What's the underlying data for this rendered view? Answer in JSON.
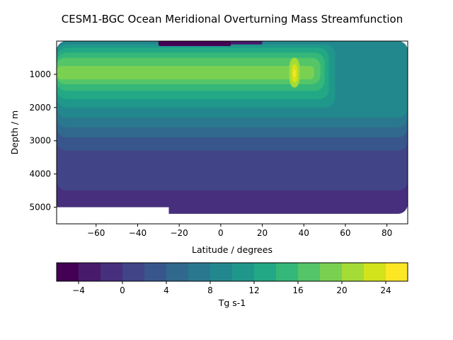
{
  "chart_data": {
    "type": "heatmap",
    "title": "CESM1-BGC Ocean Meridional Overturning Mass Streamfunction",
    "xlabel": "Latitude / degrees",
    "ylabel": "Depth / m",
    "xlim": [
      -79,
      90
    ],
    "ylim": [
      5500,
      0
    ],
    "xticks": [
      -60,
      -40,
      -20,
      0,
      20,
      40,
      60,
      80
    ],
    "yticks": [
      1000,
      2000,
      3000,
      4000,
      5000
    ],
    "colorbar": {
      "label": "Tg s-1",
      "levels": [
        -6,
        -4,
        -2,
        0,
        2,
        4,
        6,
        8,
        10,
        12,
        14,
        16,
        18,
        20,
        22,
        24,
        26
      ],
      "ticks": [
        -4,
        0,
        4,
        8,
        12,
        16,
        20,
        24
      ],
      "colors": [
        "#440154",
        "#481a6c",
        "#472f7d",
        "#414487",
        "#39568c",
        "#31688e",
        "#2a788e",
        "#23888e",
        "#1f988b",
        "#22a884",
        "#35b779",
        "#54c568",
        "#7ad151",
        "#a5db36",
        "#d2e21b",
        "#fde725"
      ]
    },
    "field": [
      {
        "lat_start": -79,
        "lat_end": 90,
        "depth_top": 0,
        "depth_bottom": 5200,
        "value": -1
      },
      {
        "lat_start": -79,
        "lat_end": 90,
        "depth_top": 0,
        "depth_bottom": 4500,
        "value": 1
      },
      {
        "lat_start": -79,
        "lat_end": 90,
        "depth_top": 0,
        "depth_bottom": 3300,
        "value": 3
      },
      {
        "lat_start": -79,
        "lat_end": 90,
        "depth_top": 0,
        "depth_bottom": 2900,
        "value": 5
      },
      {
        "lat_start": -79,
        "lat_end": 90,
        "depth_top": 0,
        "depth_bottom": 2600,
        "value": 7
      },
      {
        "lat_start": -79,
        "lat_end": 90,
        "depth_top": 0,
        "depth_bottom": 2300,
        "value": 9
      },
      {
        "lat_start": -79,
        "lat_end": 55,
        "depth_top": 100,
        "depth_bottom": 2000,
        "value": 11
      },
      {
        "lat_start": -79,
        "lat_end": 52,
        "depth_top": 200,
        "depth_bottom": 1750,
        "value": 13
      },
      {
        "lat_start": -79,
        "lat_end": 50,
        "depth_top": 350,
        "depth_bottom": 1500,
        "value": 15
      },
      {
        "lat_start": -79,
        "lat_end": 48,
        "depth_top": 500,
        "depth_bottom": 1300,
        "value": 17
      },
      {
        "lat_start": -79,
        "lat_end": 45,
        "depth_top": 750,
        "depth_bottom": 1150,
        "value": 19
      },
      {
        "lat_start": 33,
        "lat_end": 38,
        "depth_top": 500,
        "depth_bottom": 1400,
        "value": 21
      },
      {
        "lat_start": 34,
        "lat_end": 37,
        "depth_top": 700,
        "depth_bottom": 1250,
        "value": 23
      },
      {
        "lat_start": 35,
        "lat_end": 36,
        "depth_top": 850,
        "depth_bottom": 1100,
        "value": 25
      },
      {
        "lat_start": -30,
        "lat_end": 5,
        "depth_top": 0,
        "depth_bottom": 150,
        "value": -5
      },
      {
        "lat_start": 5,
        "lat_end": 20,
        "depth_top": 0,
        "depth_bottom": 100,
        "value": -3
      },
      {
        "lat_start": -79,
        "lat_end": -25,
        "depth_top": 5000,
        "depth_bottom": 5500,
        "value": null
      },
      {
        "lat_start": -25,
        "lat_end": 90,
        "depth_top": 5230,
        "depth_bottom": 5500,
        "value": null
      }
    ]
  }
}
